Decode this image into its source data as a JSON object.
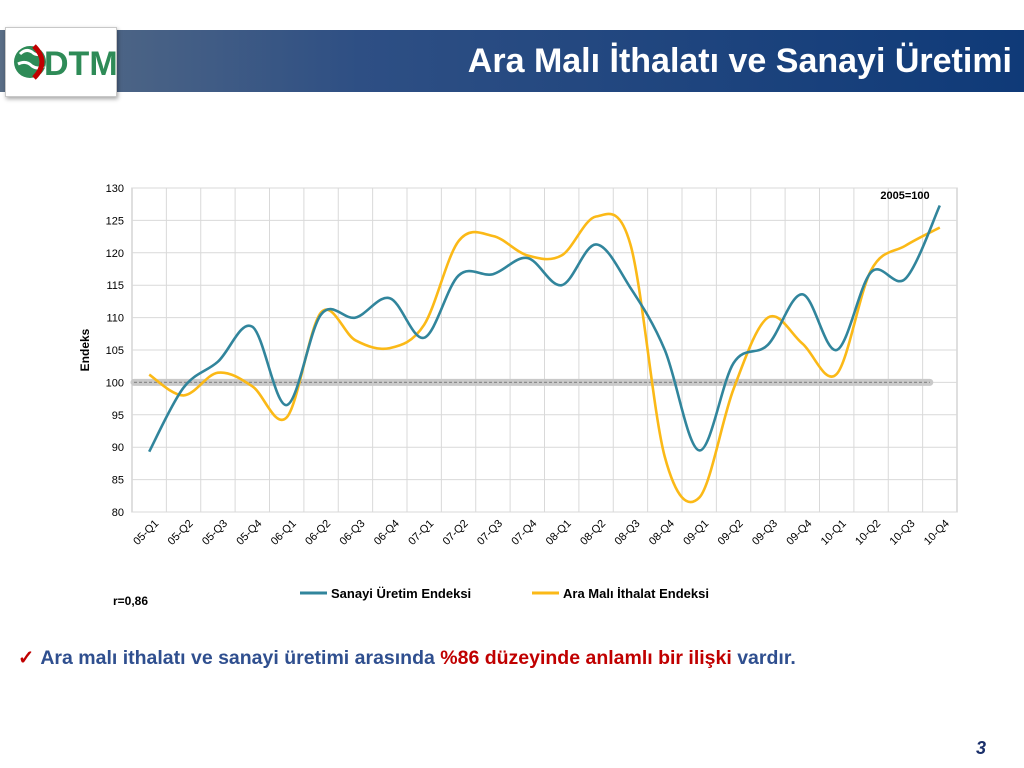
{
  "slide": {
    "title": "Ara Malı İthalatı ve Sanayi Üretimi",
    "page_number": "3",
    "logo_text": "DTM",
    "conclusion": {
      "check_icon": "✓",
      "part1": "Ara malı ithalatı ve sanayi üretimi arasında ",
      "highlight": "%86 düzeyinde anlamlı bir ilişki",
      "part2": " vardır."
    },
    "colors": {
      "header_blue": "#0f3a78",
      "title_text": "#ffffff",
      "conclusion_text": "#2f4f8f",
      "highlight": "#c00000"
    }
  },
  "chart_data": {
    "type": "line",
    "title": "",
    "ylabel": "Endeks",
    "xlabel": "",
    "ylim": [
      80,
      130
    ],
    "yticks": [
      80,
      85,
      90,
      95,
      100,
      105,
      110,
      115,
      120,
      125,
      130
    ],
    "grid": true,
    "legend_position": "bottom",
    "annotation_base": "2005=100",
    "annotation_r": "r=0,86",
    "reference_line": 100,
    "categories": [
      "05-Q1",
      "05-Q2",
      "05-Q3",
      "05-Q4",
      "06-Q1",
      "06-Q2",
      "06-Q3",
      "06-Q4",
      "07-Q1",
      "07-Q2",
      "07-Q3",
      "07-Q4",
      "08-Q1",
      "08-Q2",
      "08-Q3",
      "08-Q4",
      "09-Q1",
      "09-Q2",
      "09-Q3",
      "09-Q4",
      "10-Q1",
      "10-Q2",
      "10-Q3",
      "10-Q4"
    ],
    "series": [
      {
        "name": "Sanayi Üretim Endeksi",
        "color": "#31859c",
        "values": [
          89.3,
          99.2,
          103.2,
          108.6,
          96.5,
          110.5,
          110.0,
          113.0,
          106.9,
          116.5,
          116.7,
          119.2,
          115.0,
          121.3,
          114.6,
          105.0,
          89.5,
          103.0,
          105.8,
          113.6,
          105.0,
          117.0,
          116.0,
          127.3
        ]
      },
      {
        "name": "Ara Malı İthalat Endeksi",
        "color": "#fbb917",
        "values": [
          101.2,
          98.0,
          101.5,
          99.4,
          94.6,
          110.8,
          106.5,
          105.3,
          108.9,
          121.8,
          122.6,
          119.6,
          119.6,
          125.6,
          121.3,
          88.5,
          82.2,
          99.0,
          110.0,
          106.0,
          101.3,
          117.3,
          121.1,
          123.9
        ]
      }
    ]
  }
}
